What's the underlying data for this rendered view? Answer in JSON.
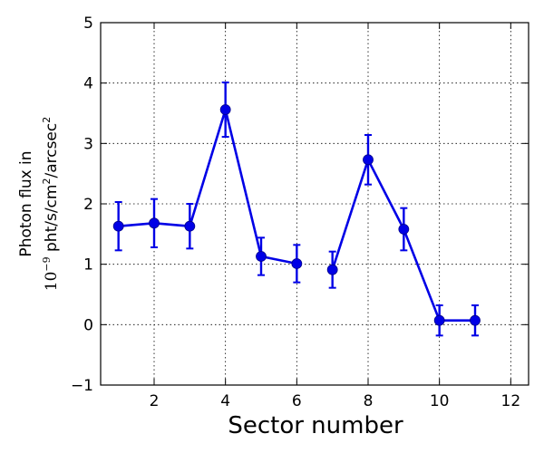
{
  "chart_data": {
    "type": "line",
    "xlabel": "Sector number",
    "ylabel_line1": "Photon flux in",
    "ylabel_line2_prefix": "10",
    "ylabel_line2_exp": "−9",
    "ylabel_line2_unit_a": " pht/s/cm",
    "ylabel_line2_unit_a_exp": "2",
    "ylabel_line2_unit_b": "/arcsec",
    "ylabel_line2_unit_b_exp": "2",
    "xlim": [
      0.5,
      12.5
    ],
    "ylim": [
      -1,
      5
    ],
    "xticks": [
      2,
      4,
      6,
      8,
      10,
      12
    ],
    "yticks": [
      -1,
      0,
      1,
      2,
      3,
      4,
      5
    ],
    "ytick_labels": [
      "−1",
      "0",
      "1",
      "2",
      "3",
      "4",
      "5"
    ],
    "grid": true,
    "color": "#0000e6",
    "series": [
      {
        "segments": [
          [
            {
              "x": 1,
              "y": 1.63,
              "err": 0.4
            },
            {
              "x": 2,
              "y": 1.68,
              "err": 0.4
            },
            {
              "x": 3,
              "y": 1.63,
              "err": 0.37
            },
            {
              "x": 4,
              "y": 3.56,
              "err": 0.45
            },
            {
              "x": 5,
              "y": 1.13,
              "err": 0.31
            },
            {
              "x": 6,
              "y": 1.01,
              "err": 0.31
            }
          ],
          [
            {
              "x": 7,
              "y": 0.91,
              "err": 0.3
            },
            {
              "x": 8,
              "y": 2.73,
              "err": 0.41
            },
            {
              "x": 9,
              "y": 1.58,
              "err": 0.35
            },
            {
              "x": 10,
              "y": 0.07,
              "err": 0.25
            },
            {
              "x": 11,
              "y": 0.07,
              "err": 0.25
            }
          ]
        ]
      }
    ]
  }
}
